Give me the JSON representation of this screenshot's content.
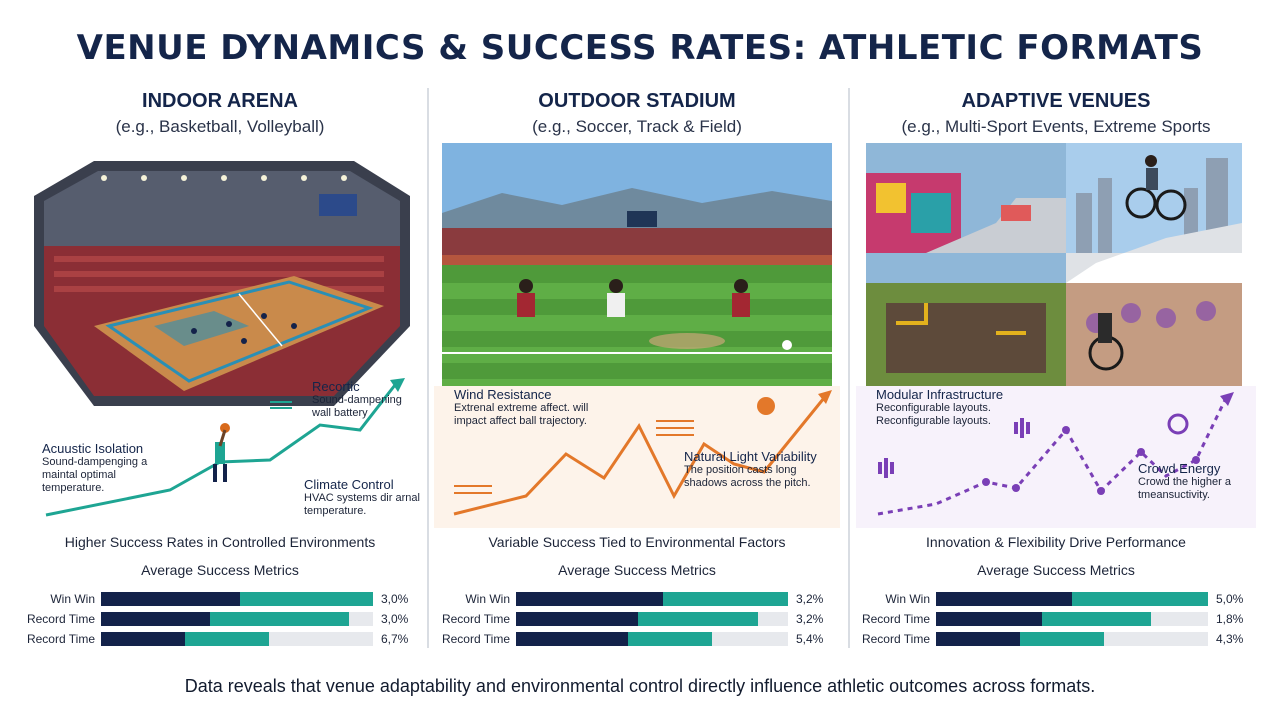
{
  "title": "VENUE DYNAMICS & SUCCESS RATES: ATHLETIC FORMATS",
  "footer": "Data reveals that venue adaptability and environmental control directly influence athletic outcomes across formats.",
  "colors": {
    "navy": "#13224a",
    "teal": "#1ea593",
    "orange": "#e3782a",
    "purple": "#7a3fb6",
    "track": "#e7e9ed"
  },
  "columns": [
    {
      "heading": "INDOOR ARENA",
      "subheading": "(e.g., Basketball, Volleyball)",
      "notes": [
        {
          "title": "Recortic",
          "text": "Sound-dampening wall battery"
        },
        {
          "title": "Acuustic Isolation",
          "text": "Sound-dampenging a maintal optimal temperature."
        },
        {
          "title": "Climate Control",
          "text": "HVAC systems dir arnal temperature."
        }
      ],
      "caption": "Higher Success Rates in Controlled Environments",
      "metrics_title": "Average Success Metrics",
      "metrics": [
        {
          "label": "Win Win",
          "value": "3,0%",
          "navy": 0.51,
          "teal": 0.49,
          "total": 1.0
        },
        {
          "label": "Record Time",
          "value": "3,0%",
          "navy": 0.4,
          "teal": 0.51,
          "total": 0.91
        },
        {
          "label": "Record Time",
          "value": "6,7%",
          "navy": 0.31,
          "teal": 0.31,
          "total": 0.62
        }
      ]
    },
    {
      "heading": "OUTDOOR STADIUM",
      "subheading": "(e.g., Soccer, Track & Field)",
      "notes": [
        {
          "title": "Wind Resistance",
          "text": "Extrenal extreme affect. will impact affect ball trajectory."
        },
        {
          "title": "Natural Light Variability",
          "text": "The position casts long shadows across the pitch."
        }
      ],
      "caption": "Variable Success Tied to Environmental Factors",
      "metrics_title": "Average Success Metrics",
      "metrics": [
        {
          "label": "Win Win",
          "value": "3,2%",
          "navy": 0.54,
          "teal": 0.46,
          "total": 1.0
        },
        {
          "label": "Record Time",
          "value": "3,2%",
          "navy": 0.45,
          "teal": 0.44,
          "total": 0.89
        },
        {
          "label": "Record Time",
          "value": "5,4%",
          "navy": 0.41,
          "teal": 0.31,
          "total": 0.72
        }
      ]
    },
    {
      "heading": "ADAPTIVE VENUES",
      "subheading": "(e.g., Multi-Sport Events, Extreme Sports",
      "notes": [
        {
          "title": "Modular Infrastructure",
          "text": "Reconfigurable layouts. Reconfigurable layouts."
        },
        {
          "title": "Crowd Energy",
          "text": "Crowd the higher a tmeansuctivity."
        }
      ],
      "caption": "Innovation & Flexibility Drive Performance",
      "metrics_title": "Average Success Metrics",
      "metrics": [
        {
          "label": "Win Win",
          "value": "5,0%",
          "navy": 0.5,
          "teal": 0.5,
          "total": 1.0
        },
        {
          "label": "Record Time",
          "value": "1,8%",
          "navy": 0.39,
          "teal": 0.4,
          "total": 0.79
        },
        {
          "label": "Record Time",
          "value": "4,3%",
          "navy": 0.31,
          "teal": 0.31,
          "total": 0.62
        }
      ]
    }
  ]
}
